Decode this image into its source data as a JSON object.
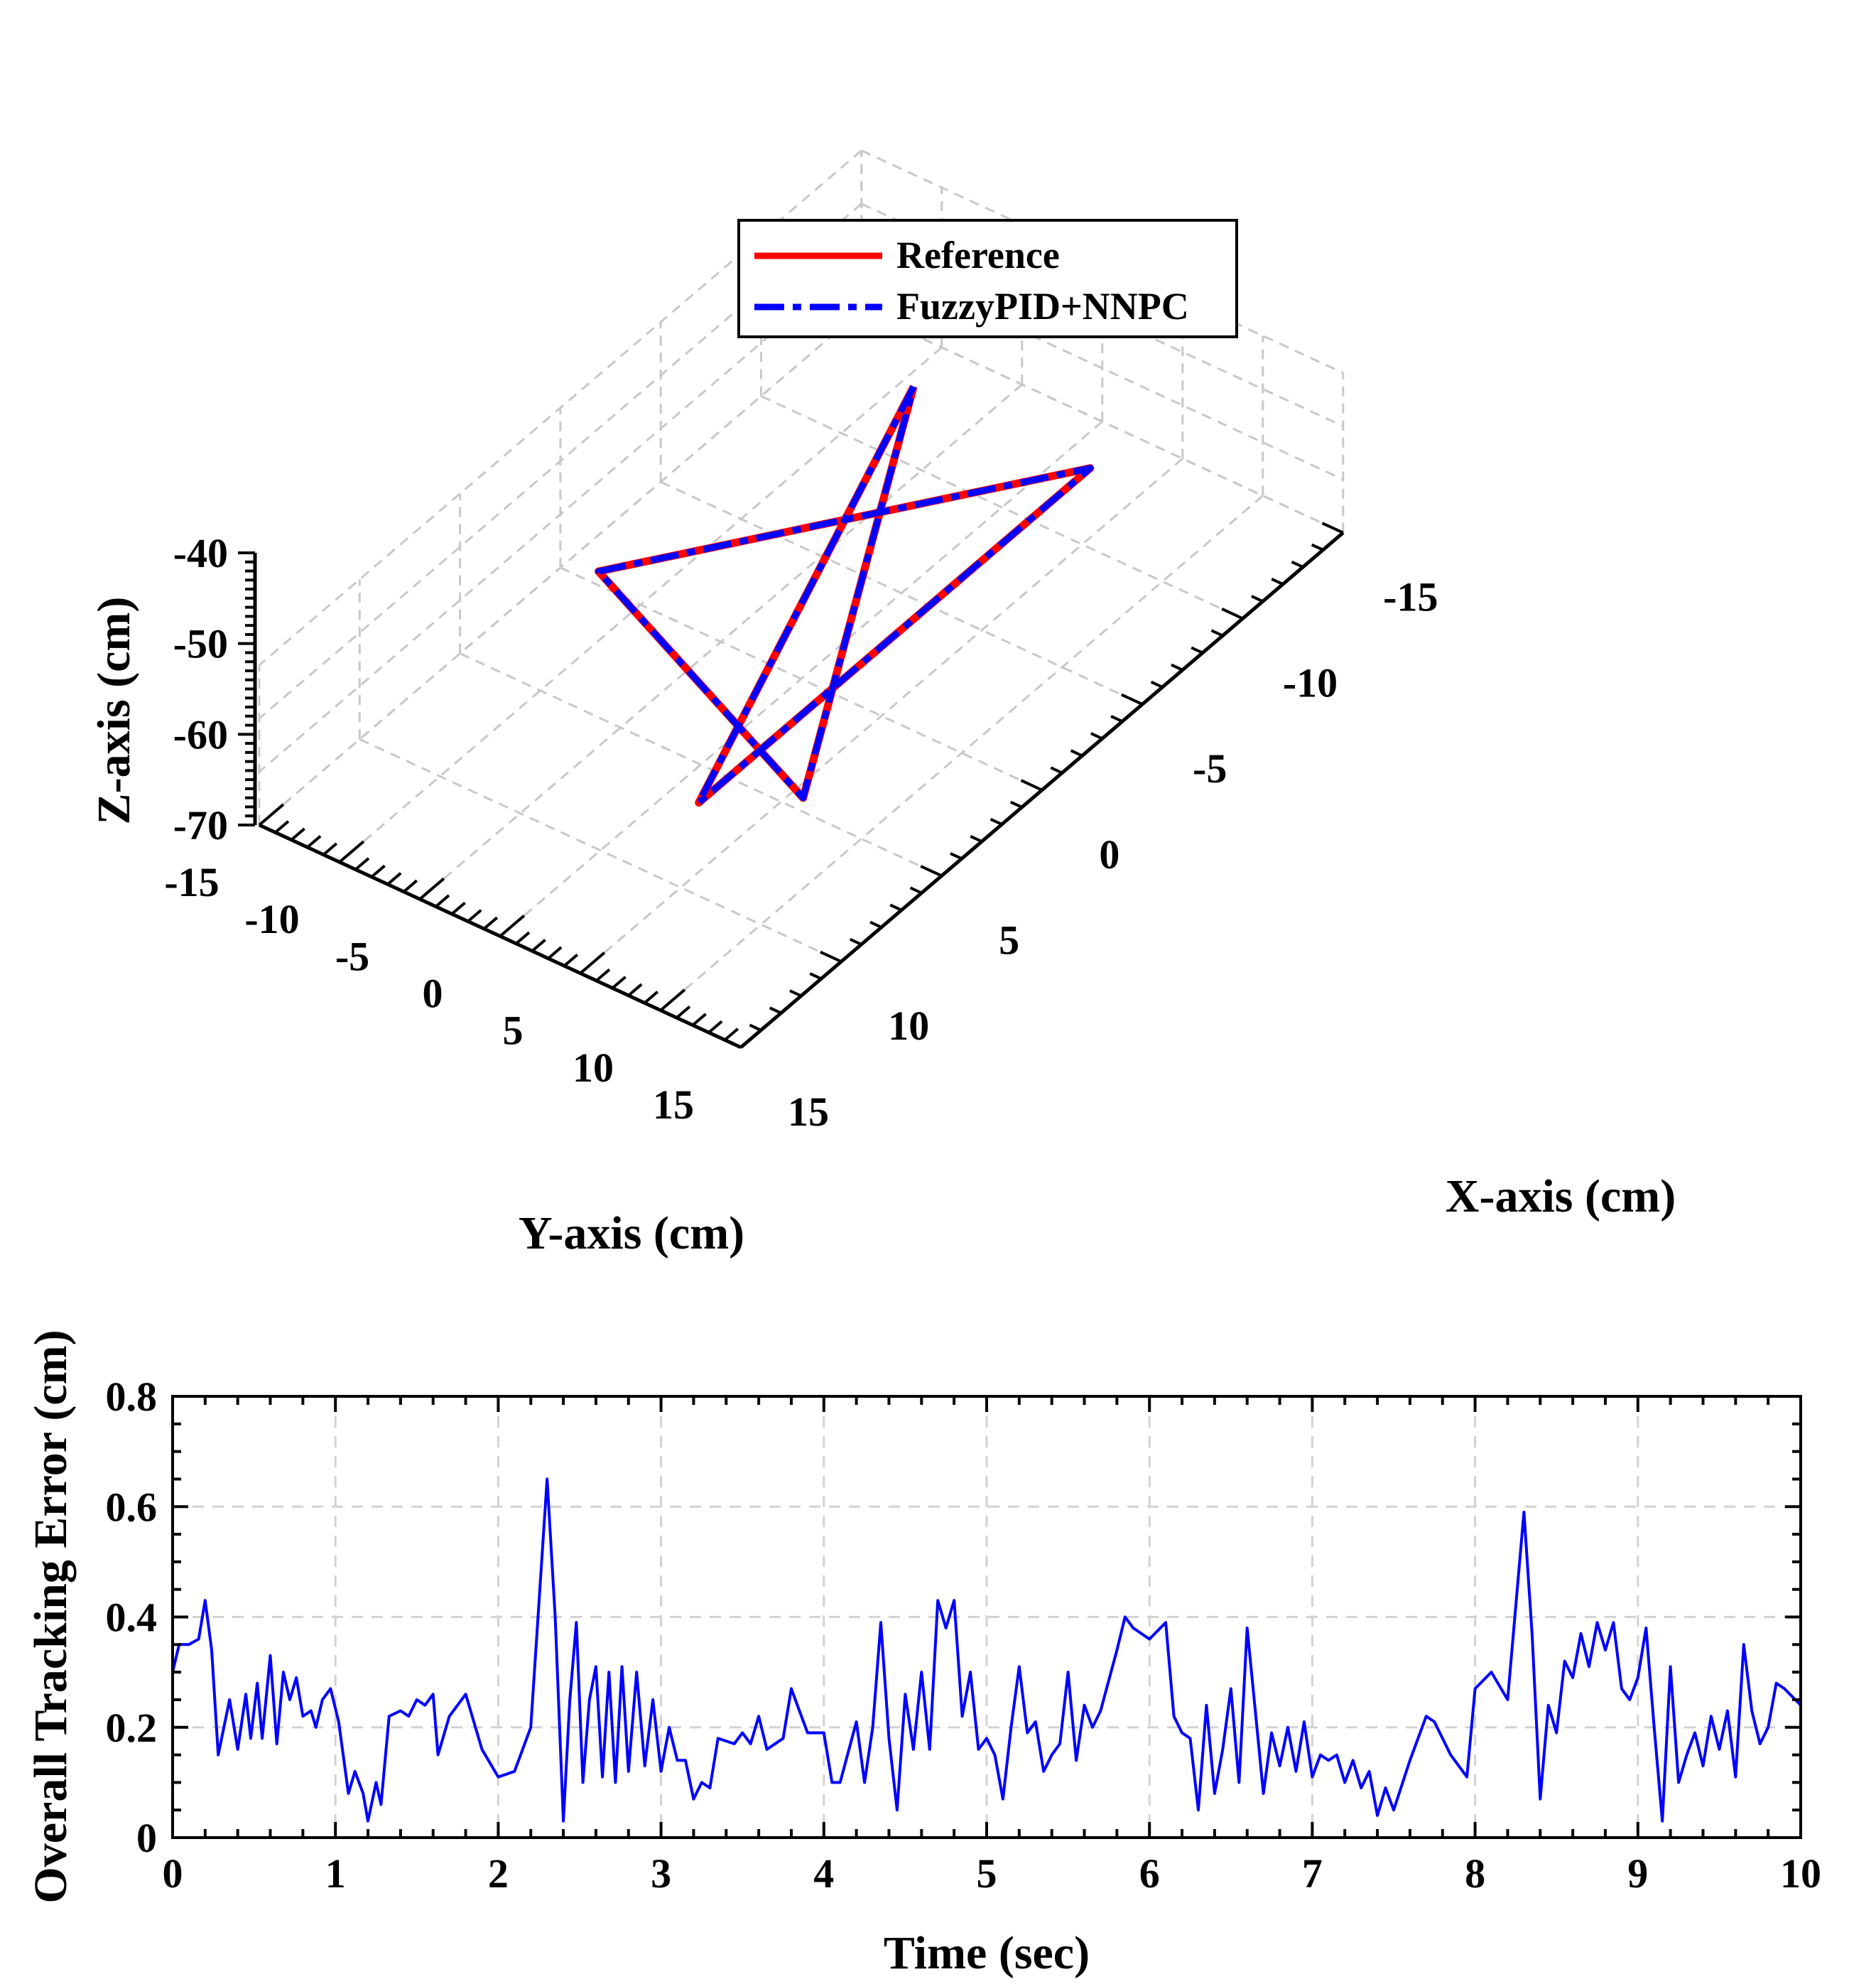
{
  "chart_data": [
    {
      "type": "line3d",
      "title": "",
      "xlabel": "X-axis (cm)",
      "ylabel": "Y-axis (cm)",
      "zlabel": "Z-axis (cm)",
      "xlim": [
        -15,
        15
      ],
      "ylim": [
        -15,
        15
      ],
      "zlim": [
        -70,
        -40
      ],
      "xticks": [
        "-15",
        "-10",
        "-5",
        "0",
        "5",
        "10",
        "15"
      ],
      "yticks": [
        "-15",
        "-10",
        "-5",
        "0",
        "5",
        "10",
        "15"
      ],
      "zticks": [
        "-40",
        "-50",
        "-60",
        "-70"
      ],
      "legend": {
        "placement": "top-center",
        "entries": [
          "Reference",
          "FuzzyPID+NNPC"
        ]
      },
      "series": [
        {
          "name": "Reference",
          "color": "#ff0000",
          "style": "solid",
          "points": [
            [
              -10,
              -5.5,
              -55
            ],
            [
              9.5,
              5.5,
              -55
            ],
            [
              -10,
              5.5,
              -55
            ],
            [
              2.5,
              -9.5,
              -55
            ],
            [
              7.5,
              9.5,
              -55
            ],
            [
              -10,
              -5.5,
              -55
            ]
          ]
        },
        {
          "name": "FuzzyPID+NNPC",
          "color": "#0000ff",
          "style": "dash-dot",
          "points": [
            [
              -10,
              -5.5,
              -55
            ],
            [
              9.5,
              5.5,
              -55
            ],
            [
              -10,
              5.5,
              -55
            ],
            [
              2.5,
              -9.5,
              -55
            ],
            [
              7.5,
              9.5,
              -55
            ],
            [
              -10,
              -5.5,
              -55
            ]
          ]
        }
      ]
    },
    {
      "type": "line",
      "title": "",
      "xlabel": "Time (sec)",
      "ylabel": "Overall Tracking Error (cm)",
      "xlim": [
        0,
        10
      ],
      "ylim": [
        0,
        0.8
      ],
      "xticks": [
        "0",
        "1",
        "2",
        "3",
        "4",
        "5",
        "6",
        "7",
        "8",
        "9",
        "10"
      ],
      "yticks": [
        "0",
        "0.2",
        "0.4",
        "0.6",
        "0.8"
      ],
      "grid": true,
      "series": [
        {
          "name": "Overall Tracking Error",
          "color": "#0000ff",
          "points": [
            [
              0,
              0.3
            ],
            [
              0.04,
              0.35
            ],
            [
              0.1,
              0.35
            ],
            [
              0.16,
              0.36
            ],
            [
              0.2,
              0.43
            ],
            [
              0.24,
              0.34
            ],
            [
              0.28,
              0.15
            ],
            [
              0.35,
              0.25
            ],
            [
              0.4,
              0.16
            ],
            [
              0.45,
              0.26
            ],
            [
              0.48,
              0.18
            ],
            [
              0.52,
              0.28
            ],
            [
              0.55,
              0.18
            ],
            [
              0.6,
              0.33
            ],
            [
              0.64,
              0.17
            ],
            [
              0.68,
              0.3
            ],
            [
              0.72,
              0.25
            ],
            [
              0.76,
              0.29
            ],
            [
              0.8,
              0.22
            ],
            [
              0.85,
              0.23
            ],
            [
              0.88,
              0.2
            ],
            [
              0.92,
              0.25
            ],
            [
              0.97,
              0.27
            ],
            [
              1.02,
              0.21
            ],
            [
              1.08,
              0.08
            ],
            [
              1.12,
              0.12
            ],
            [
              1.17,
              0.08
            ],
            [
              1.2,
              0.03
            ],
            [
              1.25,
              0.1
            ],
            [
              1.28,
              0.06
            ],
            [
              1.33,
              0.22
            ],
            [
              1.4,
              0.23
            ],
            [
              1.45,
              0.22
            ],
            [
              1.5,
              0.25
            ],
            [
              1.55,
              0.24
            ],
            [
              1.6,
              0.26
            ],
            [
              1.63,
              0.15
            ],
            [
              1.7,
              0.22
            ],
            [
              1.8,
              0.26
            ],
            [
              1.9,
              0.16
            ],
            [
              2.0,
              0.11
            ],
            [
              2.1,
              0.12
            ],
            [
              2.2,
              0.2
            ],
            [
              2.3,
              0.65
            ],
            [
              2.35,
              0.4
            ],
            [
              2.4,
              0.03
            ],
            [
              2.44,
              0.25
            ],
            [
              2.48,
              0.39
            ],
            [
              2.52,
              0.1
            ],
            [
              2.56,
              0.25
            ],
            [
              2.6,
              0.31
            ],
            [
              2.64,
              0.11
            ],
            [
              2.68,
              0.3
            ],
            [
              2.72,
              0.1
            ],
            [
              2.76,
              0.31
            ],
            [
              2.8,
              0.12
            ],
            [
              2.85,
              0.3
            ],
            [
              2.9,
              0.13
            ],
            [
              2.95,
              0.25
            ],
            [
              3.0,
              0.12
            ],
            [
              3.05,
              0.2
            ],
            [
              3.1,
              0.14
            ],
            [
              3.15,
              0.14
            ],
            [
              3.2,
              0.07
            ],
            [
              3.25,
              0.1
            ],
            [
              3.3,
              0.09
            ],
            [
              3.35,
              0.18
            ],
            [
              3.45,
              0.17
            ],
            [
              3.5,
              0.19
            ],
            [
              3.55,
              0.17
            ],
            [
              3.6,
              0.22
            ],
            [
              3.65,
              0.16
            ],
            [
              3.75,
              0.18
            ],
            [
              3.8,
              0.27
            ],
            [
              3.85,
              0.23
            ],
            [
              3.9,
              0.19
            ],
            [
              4.0,
              0.19
            ],
            [
              4.05,
              0.1
            ],
            [
              4.1,
              0.1
            ],
            [
              4.2,
              0.21
            ],
            [
              4.25,
              0.1
            ],
            [
              4.3,
              0.2
            ],
            [
              4.35,
              0.39
            ],
            [
              4.4,
              0.18
            ],
            [
              4.45,
              0.05
            ],
            [
              4.5,
              0.26
            ],
            [
              4.55,
              0.16
            ],
            [
              4.6,
              0.3
            ],
            [
              4.65,
              0.16
            ],
            [
              4.7,
              0.43
            ],
            [
              4.75,
              0.38
            ],
            [
              4.8,
              0.43
            ],
            [
              4.85,
              0.22
            ],
            [
              4.9,
              0.3
            ],
            [
              4.95,
              0.16
            ],
            [
              5.0,
              0.18
            ],
            [
              5.05,
              0.15
            ],
            [
              5.1,
              0.07
            ],
            [
              5.15,
              0.2
            ],
            [
              5.2,
              0.31
            ],
            [
              5.25,
              0.19
            ],
            [
              5.3,
              0.21
            ],
            [
              5.35,
              0.12
            ],
            [
              5.4,
              0.15
            ],
            [
              5.45,
              0.17
            ],
            [
              5.5,
              0.3
            ],
            [
              5.55,
              0.14
            ],
            [
              5.6,
              0.24
            ],
            [
              5.65,
              0.2
            ],
            [
              5.7,
              0.23
            ],
            [
              5.8,
              0.34
            ],
            [
              5.85,
              0.4
            ],
            [
              5.9,
              0.38
            ],
            [
              6.0,
              0.36
            ],
            [
              6.1,
              0.39
            ],
            [
              6.15,
              0.22
            ],
            [
              6.2,
              0.19
            ],
            [
              6.25,
              0.18
            ],
            [
              6.3,
              0.05
            ],
            [
              6.35,
              0.24
            ],
            [
              6.4,
              0.08
            ],
            [
              6.45,
              0.16
            ],
            [
              6.5,
              0.27
            ],
            [
              6.55,
              0.1
            ],
            [
              6.6,
              0.38
            ],
            [
              6.65,
              0.23
            ],
            [
              6.7,
              0.08
            ],
            [
              6.75,
              0.19
            ],
            [
              6.8,
              0.13
            ],
            [
              6.85,
              0.2
            ],
            [
              6.9,
              0.12
            ],
            [
              6.95,
              0.21
            ],
            [
              7.0,
              0.11
            ],
            [
              7.05,
              0.15
            ],
            [
              7.1,
              0.14
            ],
            [
              7.15,
              0.15
            ],
            [
              7.2,
              0.1
            ],
            [
              7.25,
              0.14
            ],
            [
              7.3,
              0.09
            ],
            [
              7.35,
              0.12
            ],
            [
              7.4,
              0.04
            ],
            [
              7.45,
              0.09
            ],
            [
              7.5,
              0.05
            ],
            [
              7.6,
              0.14
            ],
            [
              7.7,
              0.22
            ],
            [
              7.75,
              0.21
            ],
            [
              7.85,
              0.15
            ],
            [
              7.95,
              0.11
            ],
            [
              8.0,
              0.27
            ],
            [
              8.1,
              0.3
            ],
            [
              8.2,
              0.25
            ],
            [
              8.3,
              0.59
            ],
            [
              8.35,
              0.37
            ],
            [
              8.4,
              0.07
            ],
            [
              8.45,
              0.24
            ],
            [
              8.5,
              0.19
            ],
            [
              8.55,
              0.32
            ],
            [
              8.6,
              0.29
            ],
            [
              8.65,
              0.37
            ],
            [
              8.7,
              0.31
            ],
            [
              8.75,
              0.39
            ],
            [
              8.8,
              0.34
            ],
            [
              8.85,
              0.39
            ],
            [
              8.9,
              0.27
            ],
            [
              8.95,
              0.25
            ],
            [
              9.0,
              0.29
            ],
            [
              9.05,
              0.38
            ],
            [
              9.1,
              0.2
            ],
            [
              9.15,
              0.03
            ],
            [
              9.2,
              0.31
            ],
            [
              9.25,
              0.1
            ],
            [
              9.3,
              0.15
            ],
            [
              9.35,
              0.19
            ],
            [
              9.4,
              0.13
            ],
            [
              9.45,
              0.22
            ],
            [
              9.5,
              0.16
            ],
            [
              9.55,
              0.23
            ],
            [
              9.6,
              0.11
            ],
            [
              9.65,
              0.35
            ],
            [
              9.7,
              0.23
            ],
            [
              9.75,
              0.17
            ],
            [
              9.8,
              0.2
            ],
            [
              9.85,
              0.28
            ],
            [
              9.9,
              0.27
            ],
            [
              10.0,
              0.24
            ]
          ]
        }
      ]
    }
  ]
}
